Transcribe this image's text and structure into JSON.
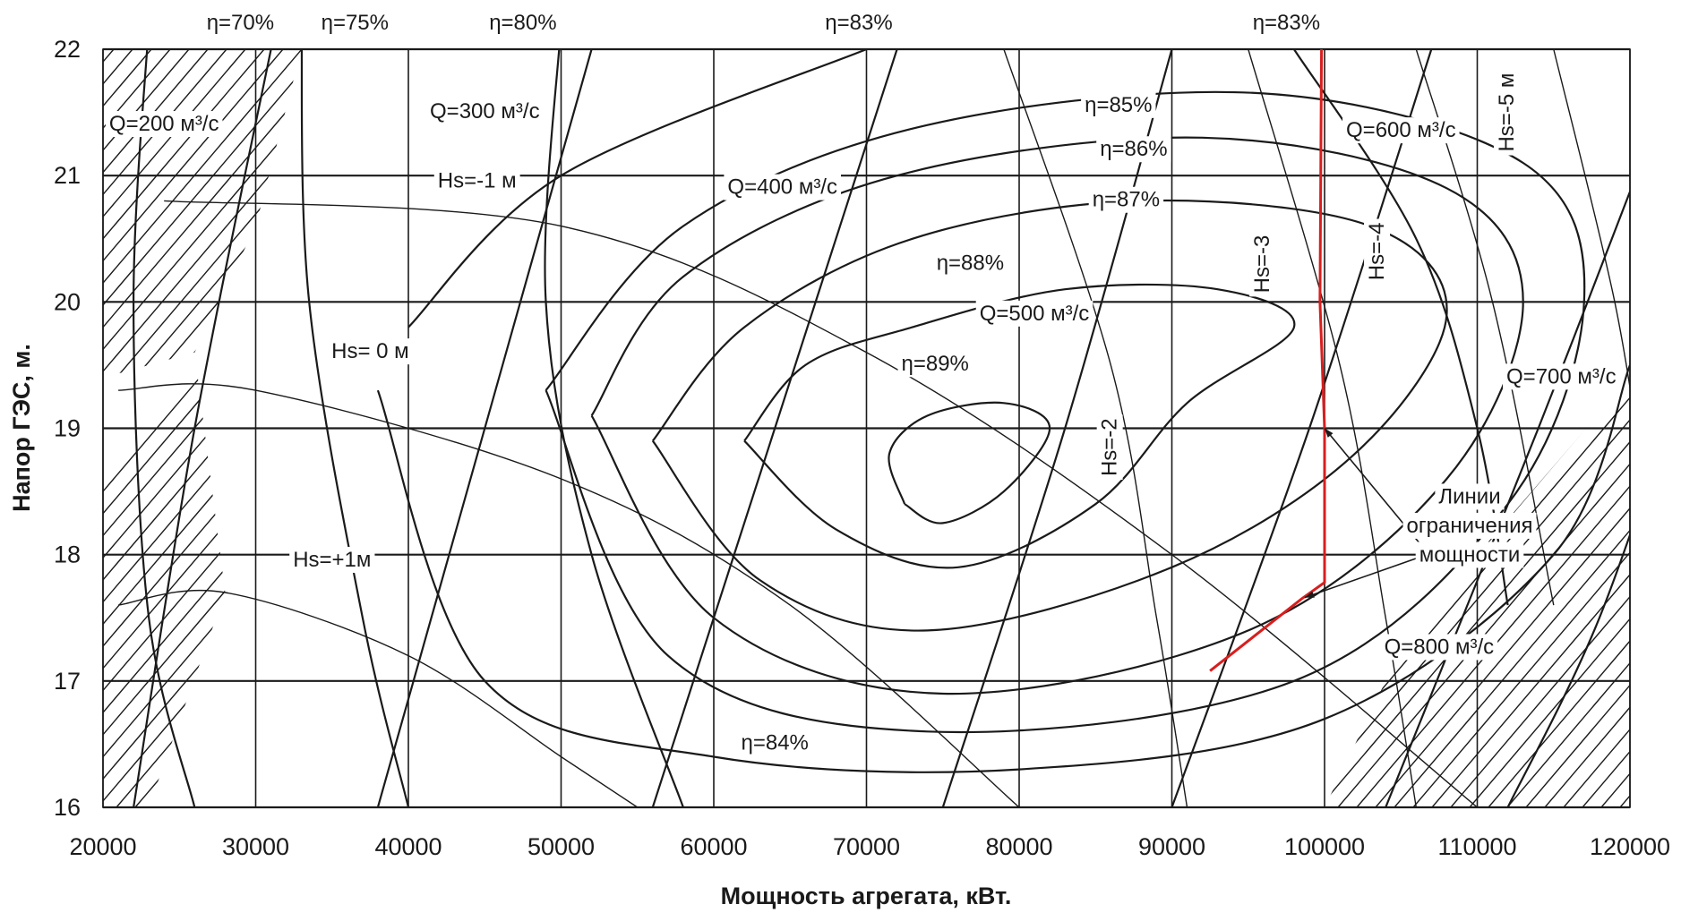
{
  "chart_data": {
    "type": "line",
    "subtype": "turbine hill chart (contour)",
    "xlabel": "Мощность агрегата, кВт.",
    "ylabel": "Напор ГЭС, м.",
    "xlim": [
      20000,
      120000
    ],
    "ylim": [
      16,
      22
    ],
    "x_ticks": [
      20000,
      30000,
      40000,
      50000,
      60000,
      70000,
      80000,
      90000,
      100000,
      110000,
      120000
    ],
    "y_ticks": [
      16,
      17,
      18,
      19,
      20,
      21,
      22
    ],
    "x_tick_labels": [
      "20000",
      "30000",
      "40000",
      "50000",
      "60000",
      "70000",
      "80000",
      "90000",
      "100000",
      "110000",
      "120000"
    ],
    "y_tick_labels": [
      "16",
      "17",
      "18",
      "19",
      "20",
      "21",
      "22"
    ],
    "grid": true,
    "efficiency_contours": [
      {
        "label": "η=89%",
        "level": 89,
        "points": [
          [
            72500,
            18.4
          ],
          [
            75000,
            18.25
          ],
          [
            79000,
            18.5
          ],
          [
            82000,
            19.0
          ],
          [
            79000,
            19.2
          ],
          [
            74000,
            19.1
          ],
          [
            71500,
            18.8
          ],
          [
            72500,
            18.4
          ]
        ]
      },
      {
        "label": "η=88%",
        "level": 88,
        "points": [
          [
            62000,
            18.9
          ],
          [
            68000,
            18.2
          ],
          [
            76000,
            17.9
          ],
          [
            85000,
            18.4
          ],
          [
            91000,
            19.2
          ],
          [
            98000,
            19.8
          ],
          [
            93000,
            20.1
          ],
          [
            83000,
            20.1
          ],
          [
            73000,
            19.8
          ],
          [
            66000,
            19.5
          ],
          [
            62000,
            18.9
          ]
        ]
      },
      {
        "label": "η=87%",
        "level": 87,
        "points": [
          [
            56000,
            18.9
          ],
          [
            63000,
            17.8
          ],
          [
            74000,
            17.4
          ],
          [
            90000,
            17.9
          ],
          [
            102000,
            18.8
          ],
          [
            108000,
            19.9
          ],
          [
            103000,
            20.6
          ],
          [
            88000,
            20.8
          ],
          [
            73000,
            20.5
          ],
          [
            62000,
            19.8
          ],
          [
            56000,
            18.9
          ]
        ]
      },
      {
        "label": "η=86%",
        "level": 86,
        "points": [
          [
            52000,
            19.1
          ],
          [
            60000,
            17.5
          ],
          [
            75000,
            16.9
          ],
          [
            95000,
            17.4
          ],
          [
            108000,
            18.6
          ],
          [
            113000,
            20.0
          ],
          [
            108000,
            20.9
          ],
          [
            92000,
            21.3
          ],
          [
            72000,
            21.0
          ],
          [
            58000,
            20.2
          ],
          [
            52000,
            19.1
          ]
        ]
      },
      {
        "label": "η=85%",
        "level": 85,
        "points": [
          [
            49000,
            19.3
          ],
          [
            57000,
            17.2
          ],
          [
            74000,
            16.6
          ],
          [
            98000,
            17.0
          ],
          [
            112000,
            18.4
          ],
          [
            117000,
            20.0
          ],
          [
            113000,
            21.1
          ],
          [
            96000,
            21.65
          ],
          [
            74000,
            21.4
          ],
          [
            58000,
            20.6
          ],
          [
            49000,
            19.3
          ]
        ]
      },
      {
        "label": "η=84%",
        "level": 84,
        "points": [
          [
            38000,
            19.3
          ],
          [
            45000,
            17.0
          ],
          [
            60000,
            16.4
          ],
          [
            80000,
            16.3
          ],
          [
            100000,
            16.7
          ],
          [
            115000,
            18.0
          ],
          [
            120000,
            19.5
          ]
        ]
      },
      {
        "label": "η=83%",
        "level": 83,
        "points": [
          [
            40000,
            19.8
          ],
          [
            50000,
            21.0
          ],
          [
            70000,
            22.0
          ]
        ]
      },
      {
        "label": "η=83%",
        "level": 83,
        "points": [
          [
            98000,
            22.0
          ],
          [
            106000,
            20.5
          ],
          [
            110000,
            19.0
          ],
          [
            112000,
            17.6
          ]
        ]
      },
      {
        "label": "η=80%",
        "level": 80,
        "points": [
          [
            50000,
            22.2
          ],
          [
            49000,
            20.0
          ],
          [
            52000,
            18.0
          ],
          [
            58000,
            16.0
          ]
        ]
      },
      {
        "label": "η=75%",
        "level": 75,
        "points": [
          [
            33000,
            22.2
          ],
          [
            33500,
            20.0
          ],
          [
            37000,
            17.5
          ],
          [
            40000,
            16.0
          ]
        ]
      },
      {
        "label": "η=70%",
        "level": 70,
        "points": [
          [
            23000,
            22.2
          ],
          [
            22000,
            20.0
          ],
          [
            23000,
            17.5
          ],
          [
            26000,
            16.0
          ]
        ]
      }
    ],
    "discharge_lines": [
      {
        "label": "Q=200 м³/с",
        "value": 200,
        "unit": "м³/с",
        "points": [
          [
            31000,
            22
          ],
          [
            26000,
            19
          ],
          [
            22000,
            16
          ]
        ]
      },
      {
        "label": "Q=300 м³/с",
        "value": 300,
        "unit": "м³/с",
        "points": [
          [
            52000,
            22
          ],
          [
            45000,
            19
          ],
          [
            38000,
            16
          ]
        ]
      },
      {
        "label": "Q=400 м³/с",
        "value": 400,
        "unit": "м³/с",
        "points": [
          [
            72000,
            22
          ],
          [
            64000,
            19
          ],
          [
            56000,
            16
          ]
        ]
      },
      {
        "label": "Q=500 м³/с",
        "value": 500,
        "unit": "м³/с",
        "points": [
          [
            90000,
            22
          ],
          [
            83000,
            19
          ],
          [
            75000,
            16
          ]
        ]
      },
      {
        "label": "Q=600 м³/с",
        "value": 600,
        "unit": "м³/с",
        "points": [
          [
            107000,
            22
          ],
          [
            99000,
            19
          ],
          [
            90000,
            16
          ]
        ]
      },
      {
        "label": "Q=700 м³/с",
        "value": 700,
        "unit": "м³/с",
        "points": [
          [
            122000,
            21.5
          ],
          [
            114000,
            19
          ],
          [
            104000,
            16
          ]
        ]
      },
      {
        "label": "Q=800 м³/с",
        "value": 800,
        "unit": "м³/с",
        "points": [
          [
            124000,
            19.6
          ],
          [
            118000,
            17.5
          ],
          [
            112000,
            16
          ]
        ]
      }
    ],
    "suction_height_lines": [
      {
        "label": "Hs=-1 м",
        "value": -1,
        "points": [
          [
            24000,
            20.8
          ],
          [
            50000,
            20.6
          ],
          [
            70000,
            19.6
          ],
          [
            90000,
            18.0
          ],
          [
            110000,
            16.0
          ]
        ]
      },
      {
        "label": "Hs= 0 м",
        "value": 0,
        "points": [
          [
            21000,
            19.3
          ],
          [
            30000,
            19.3
          ],
          [
            50000,
            18.6
          ],
          [
            65000,
            17.6
          ],
          [
            80000,
            16.0
          ]
        ]
      },
      {
        "label": "Hs=+1м",
        "value": 1,
        "points": [
          [
            21000,
            17.6
          ],
          [
            28000,
            17.7
          ],
          [
            40000,
            17.2
          ],
          [
            50000,
            16.4
          ],
          [
            55000,
            16.0
          ]
        ]
      },
      {
        "label": "Hs=-2",
        "value": -2,
        "points": [
          [
            79000,
            22
          ],
          [
            86000,
            19.5
          ],
          [
            89000,
            17.5
          ],
          [
            91000,
            16.0
          ]
        ]
      },
      {
        "label": "Hs=-3",
        "value": -3,
        "points": [
          [
            95000,
            22
          ],
          [
            101000,
            19.5
          ],
          [
            104000,
            17.5
          ],
          [
            106000,
            16.0
          ]
        ]
      },
      {
        "label": "Hs=-4",
        "value": -4,
        "points": [
          [
            106000,
            22
          ],
          [
            111000,
            20.0
          ],
          [
            115000,
            17.6
          ]
        ]
      },
      {
        "label": "Hs=-5 м",
        "value": -5,
        "points": [
          [
            115000,
            22
          ],
          [
            119000,
            20.0
          ],
          [
            121000,
            18.5
          ]
        ]
      }
    ],
    "power_limit_line": {
      "label": "Линии ограничения мощности",
      "color": "#d81e1e",
      "points": [
        [
          92500,
          17.08
        ],
        [
          98500,
          17.65
        ],
        [
          100000,
          17.78
        ],
        [
          100000,
          19.0
        ],
        [
          99700,
          20.0
        ],
        [
          99800,
          22.0
        ]
      ]
    },
    "annotations": [
      {
        "text": "η=70%",
        "x": 29000,
        "y": 22.2
      },
      {
        "text": "η=75%",
        "x": 36500,
        "y": 22.2
      },
      {
        "text": "η=80%",
        "x": 47500,
        "y": 22.2
      },
      {
        "text": "η=83%",
        "x": 69500,
        "y": 22.2
      },
      {
        "text": "η=83%",
        "x": 97500,
        "y": 22.2
      },
      {
        "text": "Q=200 м³/с",
        "x": 24000,
        "y": 21.4
      },
      {
        "text": "Q=300 м³/с",
        "x": 45000,
        "y": 21.5
      },
      {
        "text": "Q=400 м³/с",
        "x": 64500,
        "y": 20.9
      },
      {
        "text": "Q=500 м³/с",
        "x": 81000,
        "y": 19.9
      },
      {
        "text": "Q=600 м³/с",
        "x": 105000,
        "y": 21.35
      },
      {
        "text": "Q=700 м³/с",
        "x": 115500,
        "y": 19.4
      },
      {
        "text": "Q=800 м³/с",
        "x": 107500,
        "y": 17.26
      },
      {
        "text": "η=85%",
        "x": 86500,
        "y": 21.55
      },
      {
        "text": "η=86%",
        "x": 87500,
        "y": 21.2
      },
      {
        "text": "η=87%",
        "x": 87000,
        "y": 20.8
      },
      {
        "text": "η=88%",
        "x": 76800,
        "y": 20.3
      },
      {
        "text": "η=89%",
        "x": 74500,
        "y": 19.5
      },
      {
        "text": "η=84%",
        "x": 64000,
        "y": 16.5
      },
      {
        "text": "Hs=-1 м",
        "x": 44500,
        "y": 20.95
      },
      {
        "text": "Hs= 0 м",
        "x": 37500,
        "y": 19.6
      },
      {
        "text": "Hs=+1м",
        "x": 35000,
        "y": 17.95
      },
      {
        "text": "Hs=-2",
        "x": 86000,
        "y": 18.85
      },
      {
        "text": "Hs=-3",
        "x": 96000,
        "y": 20.3
      },
      {
        "text": "Hs=-4",
        "x": 103500,
        "y": 20.4
      },
      {
        "text": "Hs=-5 м",
        "x": 112000,
        "y": 21.5
      },
      {
        "text": "Линии",
        "x": 109500,
        "y": 18.45
      },
      {
        "text": "ограничения",
        "x": 109500,
        "y": 18.22
      },
      {
        "text": "мощности",
        "x": 109500,
        "y": 17.99
      }
    ]
  }
}
